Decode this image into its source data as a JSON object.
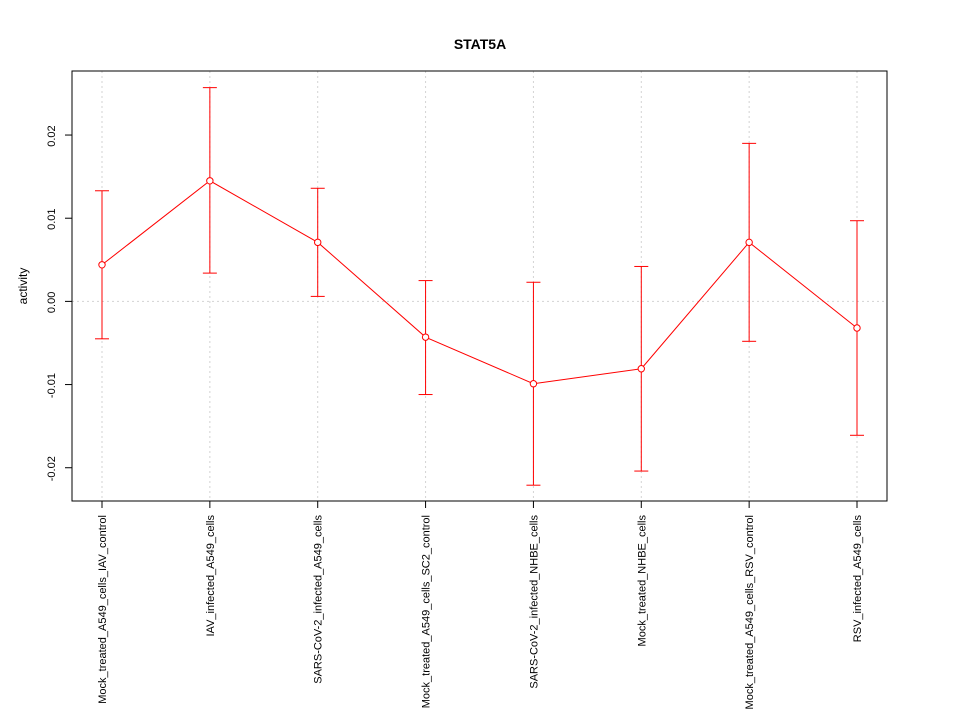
{
  "chart_data": {
    "type": "line",
    "title": "STAT5A",
    "xlabel": "",
    "ylabel": "activity",
    "categories": [
      "Mock_treated_A549_cells_IAV_control",
      "IAV_infected_A549_cells",
      "SARS-CoV-2_infected_A549_cells",
      "Mock_treated_A549_cells_SC2_control",
      "SARS-CoV-2_infected_NHBE_cells",
      "Mock_treated_NHBE_cells",
      "Mock_treated_A549_cells_RSV_control",
      "RSV_infected_A549_cells"
    ],
    "series": [
      {
        "values": [
          0.0044,
          0.0145,
          0.0071,
          -0.0043,
          -0.0099,
          -0.0081,
          0.0071,
          -0.0032
        ],
        "error_lower": [
          -0.0045,
          0.0034,
          0.0006,
          -0.0112,
          -0.0221,
          -0.0204,
          -0.0048,
          -0.0161
        ],
        "error_upper": [
          0.0133,
          0.0257,
          0.0136,
          0.0025,
          0.0023,
          0.0042,
          0.019,
          0.0097
        ],
        "color": "#ff0000"
      }
    ],
    "yticks": [
      -0.02,
      -0.01,
      0.0,
      0.01,
      0.02
    ],
    "ytick_labels": [
      "-0.02",
      "-0.01",
      "0.00",
      "0.01",
      "0.02"
    ],
    "ylim": [
      -0.024,
      0.0277
    ],
    "grid": true,
    "reference_line": 0.0
  }
}
